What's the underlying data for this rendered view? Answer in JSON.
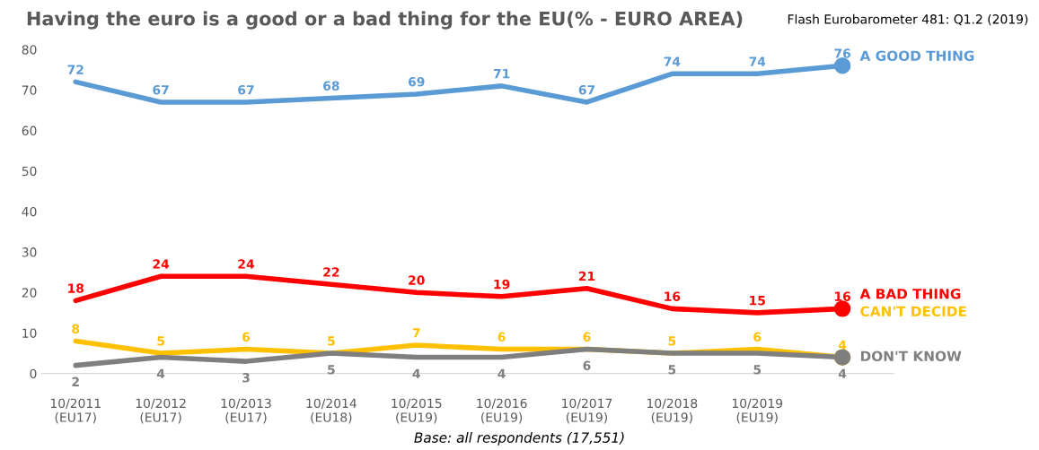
{
  "chart_data": {
    "type": "line",
    "title": "Having the euro is a good or a bad thing for the EU(% - EURO AREA)",
    "subtitle": "Flash Eurobarometer 481: Q1.2 (2019)",
    "annotations": [
      "Base: all respondents (17,551)"
    ],
    "categories": [
      "10/2011\n(EU17)",
      "10/2012\n(EU17)",
      "10/2013\n(EU17)",
      "10/2014\n(EU18)",
      "10/2015\n(EU19)",
      "10/2016\n(EU19)",
      "10/2017\n(EU19)",
      "10/2018\n(EU19)",
      "10/2019\n(EU19)",
      null
    ],
    "series": [
      {
        "name": "A GOOD THING",
        "color": "#5b9bd5",
        "values": [
          72,
          67,
          67,
          68,
          69,
          71,
          67,
          74,
          74,
          76
        ]
      },
      {
        "name": "A BAD THING",
        "color": "#ff0000",
        "values": [
          18,
          24,
          24,
          22,
          20,
          19,
          21,
          16,
          15,
          16
        ]
      },
      {
        "name": "CAN'T DECIDE",
        "color": "#ffc000",
        "values": [
          8,
          5,
          6,
          5,
          7,
          6,
          6,
          5,
          6,
          4
        ]
      },
      {
        "name": "DON'T KNOW",
        "color": "#7f7f7f",
        "values": [
          2,
          4,
          3,
          5,
          4,
          4,
          6,
          5,
          5,
          4
        ]
      }
    ],
    "ylim": [
      0,
      80
    ],
    "yticks": [
      0,
      10,
      20,
      30,
      40,
      50,
      60,
      70,
      80
    ],
    "grid": false,
    "legend": false,
    "data_labels": true,
    "marker": "none",
    "line_style": "solid"
  }
}
